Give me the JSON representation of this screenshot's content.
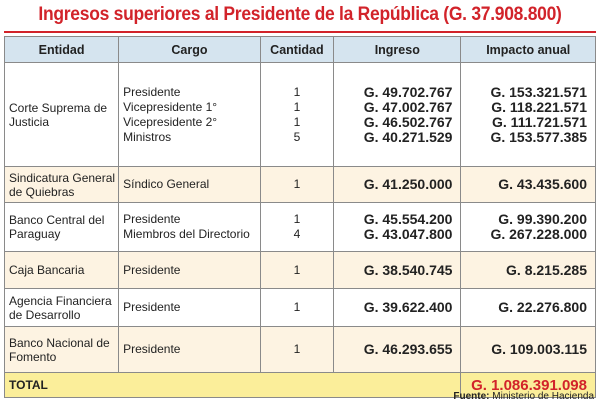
{
  "title": "Ingresos superiores al Presidente de la República (G. 37.908.800)",
  "headers": {
    "entidad": "Entidad",
    "cargo": "Cargo",
    "cantidad": "Cantidad",
    "ingreso": "Ingreso",
    "impacto": "Impacto anual"
  },
  "rows": [
    {
      "entidad": [
        "Corte Suprema de",
        "Justicia"
      ],
      "cargos": [
        "Presidente",
        "Vicepresidente 1°",
        "Vicepresidente 2°",
        "Ministros"
      ],
      "cantidades": [
        "1",
        "1",
        "1",
        "5"
      ],
      "ingresos": [
        "G. 49.702.767",
        "G. 47.002.767",
        "G. 46.502.767",
        "G. 40.271.529"
      ],
      "impactos": [
        "G. 153.321.571",
        "G. 118.221.571",
        "G. 111.721.571",
        "G. 153.577.385"
      ]
    },
    {
      "entidad": [
        "Sindicatura General",
        "de Quiebras"
      ],
      "cargos": [
        "Síndico General"
      ],
      "cantidades": [
        "1"
      ],
      "ingresos": [
        "G. 41.250.000"
      ],
      "impactos": [
        "G. 43.435.600"
      ]
    },
    {
      "entidad": [
        "Banco Central del",
        "Paraguay"
      ],
      "cargos": [
        "Presidente",
        "Miembros del Directorio"
      ],
      "cantidades": [
        "1",
        "4"
      ],
      "ingresos": [
        "G. 45.554.200",
        "G. 43.047.800"
      ],
      "impactos": [
        "G. 99.390.200",
        "G. 267.228.000"
      ]
    },
    {
      "entidad": [
        "Caja Bancaria"
      ],
      "cargos": [
        "Presidente"
      ],
      "cantidades": [
        "1"
      ],
      "ingresos": [
        "G. 38.540.745"
      ],
      "impactos": [
        "G. 8.215.285"
      ]
    },
    {
      "entidad": [
        "Agencia Financiera",
        "de Desarrollo"
      ],
      "cargos": [
        "Presidente"
      ],
      "cantidades": [
        "1"
      ],
      "ingresos": [
        "G. 39.622.400"
      ],
      "impactos": [
        "G. 22.276.800"
      ]
    },
    {
      "entidad": [
        "Banco Nacional de",
        "Fomento"
      ],
      "cargos": [
        "Presidente"
      ],
      "cantidades": [
        "1"
      ],
      "ingresos": [
        "G. 46.293.655"
      ],
      "impactos": [
        "G. 109.003.115"
      ]
    }
  ],
  "total": {
    "label": "TOTAL",
    "value": "G. 1.086.391.098"
  },
  "source": {
    "label": "Fuente:",
    "text": "Ministerio de Hacienda"
  },
  "colors": {
    "title_red": "#d2232a",
    "header_blue": "#d5e4ef",
    "row_cream": "#fdf3e2",
    "total_yellow": "#fbee9a"
  }
}
